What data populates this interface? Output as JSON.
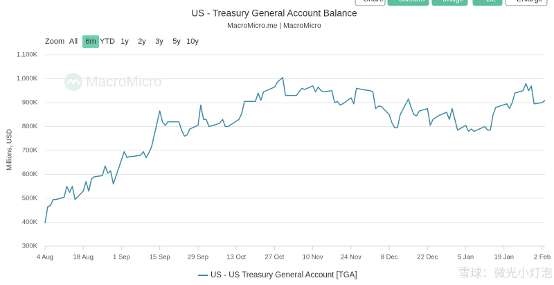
{
  "chart_data": {
    "type": "line",
    "title": "US - Treasury General Account Balance",
    "subtitle": "MacroMicro.me | MacroMicro",
    "toolbar": [
      "Share",
      "Custom",
      "Image",
      "DL",
      "Enlarge"
    ],
    "zoom_label": "Zoom",
    "zoom_buttons": [
      "All",
      "6m",
      "YTD",
      "1y",
      "2y",
      "3y",
      "5y",
      "10y"
    ],
    "zoom_selected": "6m",
    "watermark": "MacroMicro",
    "corner_watermark": "雪球：微光小灯泡",
    "y_label": "Millions, USD",
    "grid": true,
    "legend": "bottom",
    "x": [
      "4 Aug",
      "5 Aug",
      "6 Aug",
      "7 Aug",
      "8 Aug",
      "11 Aug",
      "12 Aug",
      "13 Aug",
      "14 Aug",
      "15 Aug",
      "18 Aug",
      "19 Aug",
      "20 Aug",
      "21 Aug",
      "22 Aug",
      "25 Aug",
      "26 Aug",
      "27 Aug",
      "28 Aug",
      "29 Aug",
      "2 Sep",
      "3 Sep",
      "4 Sep",
      "5 Sep",
      "8 Sep",
      "9 Sep",
      "10 Sep",
      "11 Sep",
      "12 Sep",
      "15 Sep",
      "16 Sep",
      "17 Sep",
      "18 Sep",
      "19 Sep",
      "22 Sep",
      "23 Sep",
      "24 Sep",
      "25 Sep",
      "26 Sep",
      "29 Sep",
      "30 Sep",
      "1 Oct",
      "2 Oct",
      "3 Oct",
      "6 Oct",
      "7 Oct",
      "8 Oct",
      "9 Oct",
      "10 Oct",
      "14 Oct",
      "15 Oct",
      "16 Oct",
      "17 Oct",
      "20 Oct",
      "21 Oct",
      "22 Oct",
      "23 Oct",
      "24 Oct",
      "27 Oct",
      "28 Oct",
      "29 Oct",
      "30 Oct",
      "31 Oct",
      "3 Nov",
      "4 Nov",
      "5 Nov",
      "6 Nov",
      "7 Nov",
      "10 Nov",
      "11 Nov",
      "12 Nov",
      "13 Nov",
      "14 Nov",
      "17 Nov",
      "18 Nov",
      "19 Nov",
      "20 Nov",
      "21 Nov",
      "24 Nov",
      "25 Nov",
      "26 Nov",
      "28 Nov",
      "1 Dec",
      "2 Dec",
      "3 Dec",
      "4 Dec",
      "5 Dec",
      "8 Dec",
      "9 Dec",
      "10 Dec",
      "11 Dec",
      "12 Dec",
      "15 Dec",
      "16 Dec",
      "17 Dec",
      "18 Dec",
      "19 Dec",
      "22 Dec",
      "23 Dec",
      "24 Dec",
      "26 Dec",
      "29 Dec",
      "30 Dec",
      "31 Dec",
      "2 Jan",
      "5 Jan",
      "6 Jan",
      "7 Jan",
      "8 Jan",
      "9 Jan",
      "12 Jan",
      "13 Jan",
      "14 Jan",
      "15 Jan",
      "16 Jan",
      "20 Jan",
      "21 Jan",
      "22 Jan",
      "23 Jan",
      "26 Jan",
      "27 Jan",
      "28 Jan",
      "29 Jan",
      "30 Jan",
      "2 Feb",
      "3 Feb"
    ],
    "series": [
      {
        "name": "US - US Treasury General Account [TGA]",
        "color": "#3d8ca6",
        "values": [
          396000,
          465000,
          470000,
          495000,
          495000,
          505000,
          550000,
          525000,
          550000,
          495000,
          530000,
          570000,
          530000,
          580000,
          590000,
          595000,
          635000,
          605000,
          615000,
          560000,
          695000,
          670000,
          675000,
          675000,
          680000,
          695000,
          670000,
          690000,
          715000,
          865000,
          820000,
          805000,
          820000,
          820000,
          820000,
          785000,
          760000,
          765000,
          790000,
          805000,
          890000,
          830000,
          830000,
          800000,
          810000,
          815000,
          830000,
          800000,
          800000,
          830000,
          855000,
          905000,
          905000,
          905000,
          940000,
          910000,
          945000,
          950000,
          965000,
          985000,
          995000,
          1005000,
          930000,
          930000,
          930000,
          945000,
          960000,
          955000,
          970000,
          945000,
          965000,
          950000,
          945000,
          950000,
          900000,
          905000,
          890000,
          895000,
          920000,
          895000,
          960000,
          955000,
          950000,
          945000,
          875000,
          885000,
          885000,
          850000,
          815000,
          795000,
          795000,
          850000,
          915000,
          880000,
          850000,
          845000,
          865000,
          875000,
          805000,
          830000,
          845000,
          860000,
          830000,
          875000,
          785000,
          805000,
          780000,
          790000,
          780000,
          785000,
          800000,
          785000,
          785000,
          850000,
          880000,
          895000,
          875000,
          900000,
          940000,
          950000,
          980000,
          950000,
          970000,
          895000,
          900000,
          910000
        ]
      }
    ],
    "xlim": [
      "4 Aug",
      "3 Feb"
    ],
    "xticks": [
      "4 Aug",
      "18 Aug",
      "1 Sep",
      "15 Sep",
      "29 Sep",
      "13 Oct",
      "27 Oct",
      "10 Nov",
      "24 Nov",
      "8 Dec",
      "22 Dec",
      "5 Jan",
      "19 Jan",
      "2 Feb"
    ],
    "ylim": [
      300000,
      1100000
    ],
    "yticks": [
      {
        "value": 300000,
        "label": "300K"
      },
      {
        "value": 400000,
        "label": "400K"
      },
      {
        "value": 500000,
        "label": "500K"
      },
      {
        "value": 600000,
        "label": "600K"
      },
      {
        "value": 700000,
        "label": "700K"
      },
      {
        "value": 800000,
        "label": "800K"
      },
      {
        "value": 900000,
        "label": "900K"
      },
      {
        "value": 1000000,
        "label": "1,000K"
      },
      {
        "value": 1100000,
        "label": "1,100K"
      }
    ]
  }
}
